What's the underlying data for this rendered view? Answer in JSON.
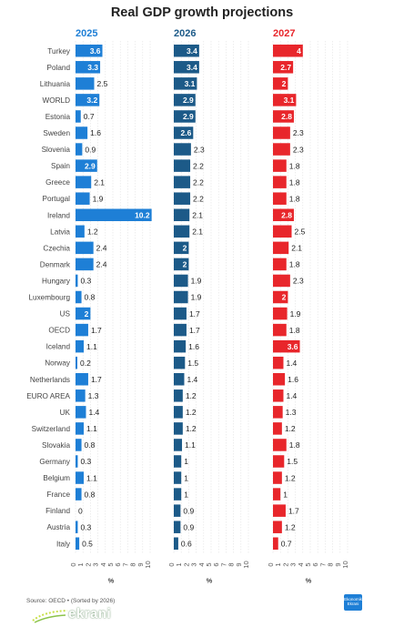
{
  "chart_data": {
    "type": "bar",
    "orientation": "horizontal",
    "title": "Real GDP growth projections",
    "categories": [
      "Turkey",
      "Poland",
      "Lithuania",
      "WORLD",
      "Estonia",
      "Sweden",
      "Slovenia",
      "Spain",
      "Greece",
      "Portugal",
      "Ireland",
      "Latvia",
      "Czechia",
      "Denmark",
      "Hungary",
      "Luxembourg",
      "US",
      "OECD",
      "Iceland",
      "Norway",
      "Netherlands",
      "EURO AREA",
      "UK",
      "Switzerland",
      "Slovakia",
      "Germany",
      "Belgium",
      "France",
      "Finland",
      "Austria",
      "Italy"
    ],
    "series": [
      {
        "name": "2025",
        "color": "#1e7fd6",
        "values": [
          3.6,
          3.3,
          2.5,
          3.2,
          0.7,
          1.6,
          0.9,
          2.9,
          2.1,
          1.9,
          10.2,
          1.2,
          2.4,
          2.4,
          0.3,
          0.8,
          2,
          1.7,
          1.1,
          0.2,
          1.7,
          1.3,
          1.4,
          1.1,
          0.8,
          0.3,
          1.1,
          0.8,
          0,
          0.3,
          0.5
        ],
        "labels": [
          "3.6",
          "3.3",
          "2.5",
          "3.2",
          "0.7",
          "1.6",
          "0.9",
          "2.9",
          "2.1",
          "1.9",
          "10.2",
          "1.2",
          "2.4",
          "2.4",
          "0.3",
          "0.8",
          "2",
          "1.7",
          "1.1",
          "0.2",
          "1.7",
          "1.3",
          "1.4",
          "1.1",
          "0.8",
          "0.3",
          "1.1",
          "0.8",
          "0",
          "0.3",
          "0.5"
        ]
      },
      {
        "name": "2026",
        "color": "#1c5a88",
        "values": [
          3.4,
          3.4,
          3.1,
          2.9,
          2.9,
          2.6,
          2.3,
          2.2,
          2.2,
          2.2,
          2.1,
          2.1,
          2,
          2,
          1.9,
          1.9,
          1.7,
          1.7,
          1.6,
          1.5,
          1.4,
          1.2,
          1.2,
          1.2,
          1.1,
          1,
          1,
          1,
          0.9,
          0.9,
          0.6
        ],
        "labels": [
          "3.4",
          "3.4",
          "3.1",
          "2.9",
          "2.9",
          "2.6",
          "2.3",
          "2.2",
          "2.2",
          "2.2",
          "2.1",
          "2.1",
          "2",
          "2",
          "1.9",
          "1.9",
          "1.7",
          "1.7",
          "1.6",
          "1.5",
          "1.4",
          "1.2",
          "1.2",
          "1.2",
          "1.1",
          "1",
          "1",
          "1",
          "0.9",
          "0.9",
          "0.6"
        ]
      },
      {
        "name": "2027",
        "color": "#e8262b",
        "values": [
          4,
          2.7,
          2,
          3.1,
          2.8,
          2.3,
          2.3,
          1.8,
          1.8,
          1.8,
          2.8,
          2.5,
          2.1,
          1.8,
          2.3,
          2,
          1.9,
          1.8,
          3.6,
          1.4,
          1.6,
          1.4,
          1.3,
          1.2,
          1.8,
          1.5,
          1.2,
          1,
          1.7,
          1.2,
          0.7
        ],
        "labels": [
          "4",
          "2.7",
          "2",
          "3.1",
          "2.8",
          "2.3",
          "2.3",
          "1.8",
          "1.8",
          "1.8",
          "2.8",
          "2.5",
          "2.1",
          "1.8",
          "2.3",
          "2",
          "1.9",
          "1.8",
          "3.6",
          "1.4",
          "1.6",
          "1.4",
          "1.3",
          "1.2",
          "1.8",
          "1.5",
          "1.2",
          "1",
          "1.7",
          "1.2",
          "0.7"
        ]
      }
    ],
    "xlim": [
      0,
      10
    ],
    "ticks": [
      "0",
      "1",
      "2",
      "3",
      "4",
      "5",
      "6",
      "7",
      "8",
      "9",
      "10"
    ],
    "xlabel": "%",
    "grid": true
  },
  "source": "Source: OECD • (Sorted by 2026)",
  "brand": "ekrani",
  "logo_text": "Ekonomik Ekrani"
}
